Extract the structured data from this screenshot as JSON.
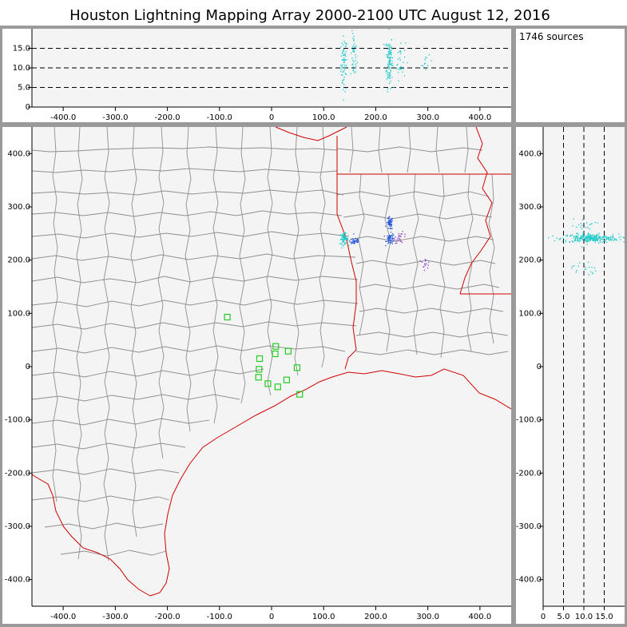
{
  "title": "Houston Lightning Mapping Array   2000-2100 UTC  August 12, 2016",
  "source_count": "1746 sources",
  "colors": {
    "frame": "#9a9a9a",
    "plot_bg": "#f4f4f4",
    "county_border": "#8f8f8f",
    "state_coast_border": "#d00000",
    "station": "#22cc22",
    "source_cyan": "#18c8c8",
    "source_blue": "#2255dd",
    "source_purple": "#8833cc"
  },
  "chart_data": [
    {
      "id": "altitude-vs-x",
      "type": "scatter",
      "xlim": [
        -460,
        460
      ],
      "ylim": [
        0,
        20
      ],
      "x_ticks": [
        "-400.0",
        "-300.0",
        "-200.0",
        "-100.0",
        "0",
        "100.0",
        "200.0",
        "300.0",
        "400.0"
      ],
      "x_tick_values": [
        -400,
        -300,
        -200,
        -100,
        0,
        100,
        200,
        300,
        400
      ],
      "y_ticks": [
        "0",
        "5.0",
        "10.0",
        "15.0"
      ],
      "y_tick_values": [
        0,
        5,
        10,
        15
      ],
      "reference_lines": [
        5,
        10,
        15
      ],
      "clusters": [
        {
          "x": 139,
          "y": 11,
          "sx": 3,
          "sy": 3.5,
          "n": 70,
          "color": "cyan"
        },
        {
          "x": 158,
          "y": 13,
          "sx": 3,
          "sy": 3,
          "n": 40,
          "color": "cyan"
        },
        {
          "x": 226,
          "y": 12,
          "sx": 3,
          "sy": 3.5,
          "n": 110,
          "color": "cyan"
        },
        {
          "x": 247,
          "y": 12,
          "sx": 5,
          "sy": 2.5,
          "n": 30,
          "color": "cyan"
        },
        {
          "x": 298,
          "y": 11,
          "sx": 5,
          "sy": 1,
          "n": 12,
          "color": "cyan"
        }
      ]
    },
    {
      "id": "plan-view",
      "type": "scatter",
      "xlim": [
        -460,
        460
      ],
      "ylim": [
        -450,
        450
      ],
      "x_ticks": [
        "-400.0",
        "-300.0",
        "-200.0",
        "-100.0",
        "0",
        "100.0",
        "200.0",
        "300.0",
        "400.0"
      ],
      "x_tick_values": [
        -400,
        -300,
        -200,
        -100,
        0,
        100,
        200,
        300,
        400
      ],
      "y_ticks": [
        "400.0",
        "300.0",
        "200.0",
        "100.0",
        "0",
        "-100.0",
        "-200.0",
        "-300.0",
        "-400.0"
      ],
      "y_tick_values": [
        400,
        300,
        200,
        100,
        0,
        -100,
        -200,
        -300,
        -400
      ],
      "stations": [
        {
          "x": -85,
          "y": 93
        },
        {
          "x": -23,
          "y": 15
        },
        {
          "x": -24,
          "y": -5
        },
        {
          "x": -25,
          "y": -20
        },
        {
          "x": -7,
          "y": -32
        },
        {
          "x": 7,
          "y": 24
        },
        {
          "x": 8,
          "y": 38
        },
        {
          "x": 32,
          "y": 29
        },
        {
          "x": 49,
          "y": -2
        },
        {
          "x": 29,
          "y": -25
        },
        {
          "x": 12,
          "y": -38
        },
        {
          "x": 54,
          "y": -52
        }
      ],
      "clusters": [
        {
          "x": 139,
          "y": 240,
          "sx": 4,
          "sy": 5,
          "n": 70,
          "color": "cyan"
        },
        {
          "x": 160,
          "y": 236,
          "sx": 5,
          "sy": 4,
          "n": 40,
          "color": "blue"
        },
        {
          "x": 227,
          "y": 269,
          "sx": 3,
          "sy": 6,
          "n": 55,
          "color": "blue"
        },
        {
          "x": 228,
          "y": 240,
          "sx": 4,
          "sy": 5,
          "n": 55,
          "color": "blue"
        },
        {
          "x": 248,
          "y": 242,
          "sx": 6,
          "sy": 5,
          "n": 25,
          "color": "purple"
        },
        {
          "x": 293,
          "y": 193,
          "sx": 6,
          "sy": 5,
          "n": 15,
          "color": "purple"
        }
      ]
    },
    {
      "id": "altitude-vs-y",
      "type": "scatter",
      "xlim": [
        0,
        20
      ],
      "ylim": [
        -450,
        450
      ],
      "x_ticks": [
        "0",
        "5.0",
        "10.0",
        "15.0"
      ],
      "x_tick_values": [
        0,
        5,
        10,
        15
      ],
      "y_ticks": [
        "400.0",
        "300.0",
        "200.0",
        "100.0",
        "0",
        "-100.0",
        "-200.0",
        "-300.0",
        "-400.0"
      ],
      "y_tick_values": [
        400,
        300,
        200,
        100,
        0,
        -100,
        -200,
        -300,
        -400
      ],
      "reference_lines": [
        5,
        10,
        15
      ],
      "clusters": [
        {
          "x": 11.5,
          "y": 241,
          "sx": 3.5,
          "sy": 4,
          "n": 260,
          "color": "cyan"
        },
        {
          "x": 10,
          "y": 262,
          "sx": 1.5,
          "sy": 8,
          "n": 25,
          "color": "cyan"
        },
        {
          "x": 10,
          "y": 185,
          "sx": 1.5,
          "sy": 8,
          "n": 20,
          "color": "cyan"
        }
      ]
    }
  ]
}
